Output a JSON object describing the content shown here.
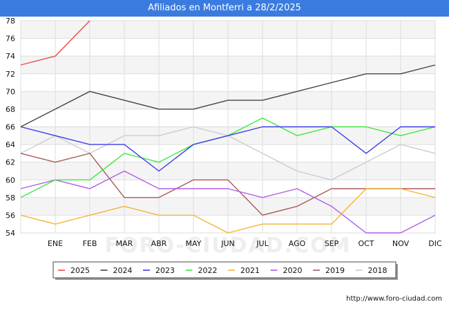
{
  "header": {
    "title": "Afiliados en Montferri a 28/2/2025"
  },
  "footer": {
    "url": "http://www.foro-ciudad.com"
  },
  "watermark": "FORO-CIUDAD.COM",
  "chart_data": {
    "type": "line",
    "title": "Afiliados en Montferri a 28/2/2025",
    "xlabel": "",
    "ylabel": "",
    "x_ticks": [
      "",
      "ENE",
      "FEB",
      "MAR",
      "ABR",
      "MAY",
      "JUN",
      "JUL",
      "AGO",
      "SEP",
      "OCT",
      "NOV",
      "DIC"
    ],
    "ylim": [
      54,
      78
    ],
    "y_ticks": [
      54,
      56,
      58,
      60,
      62,
      64,
      66,
      68,
      70,
      72,
      74,
      76,
      78
    ],
    "grid": true,
    "legend_position": "bottom",
    "series": [
      {
        "name": "2025",
        "color": "#e84a4a",
        "values": [
          73,
          74,
          78
        ]
      },
      {
        "name": "2024",
        "color": "#444444",
        "values": [
          66,
          68,
          70,
          69,
          68,
          68,
          69,
          69,
          70,
          71,
          72,
          72,
          73
        ]
      },
      {
        "name": "2023",
        "color": "#3b3be8",
        "values": [
          66,
          65,
          64,
          64,
          61,
          64,
          65,
          66,
          66,
          66,
          63,
          66,
          66
        ]
      },
      {
        "name": "2022",
        "color": "#3ee83e",
        "values": [
          58,
          60,
          60,
          63,
          62,
          64,
          65,
          67,
          65,
          66,
          66,
          65,
          66
        ]
      },
      {
        "name": "2021",
        "color": "#f5b335",
        "values": [
          56,
          55,
          56,
          57,
          56,
          56,
          54,
          55,
          55,
          55,
          59,
          59,
          58
        ]
      },
      {
        "name": "2020",
        "color": "#b05ce8",
        "values": [
          59,
          60,
          59,
          61,
          59,
          59,
          59,
          58,
          59,
          57,
          54,
          54,
          56
        ]
      },
      {
        "name": "2019",
        "color": "#a85a5a",
        "values": [
          63,
          62,
          63,
          58,
          58,
          60,
          60,
          56,
          57,
          59,
          59,
          59,
          59
        ]
      },
      {
        "name": "2018",
        "color": "#cccccc",
        "values": [
          63,
          65,
          63,
          65,
          65,
          66,
          65,
          63,
          61,
          60,
          62,
          64,
          63
        ]
      }
    ]
  }
}
